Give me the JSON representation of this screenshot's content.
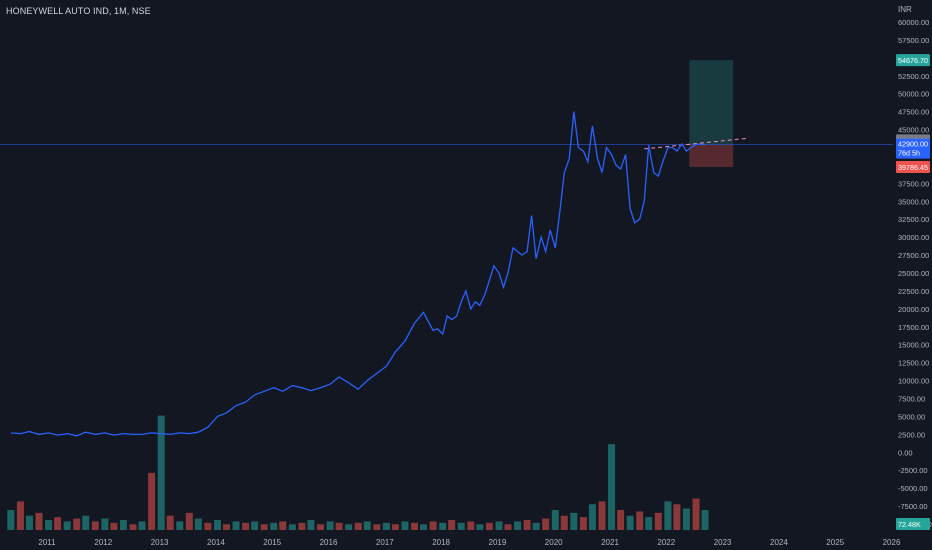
{
  "symbol_title": "HONEYWELL AUTO IND, 1M, NSE",
  "currency": "INR",
  "colors": {
    "background": "#131722",
    "line": "#2962ff",
    "up": "#26a69a",
    "down": "#ef5350",
    "text": "#b2b5be",
    "grid": "#1e222d"
  },
  "chart_data": {
    "type": "line",
    "x_tick_labels": [
      "2011",
      "2012",
      "2013",
      "2014",
      "2015",
      "2016",
      "2017",
      "2018",
      "2019",
      "2020",
      "2021",
      "2022",
      "2023",
      "2024",
      "2025",
      "2026"
    ],
    "y_tick_labels": [
      "60000.00",
      "57500.00",
      "55000.00",
      "52500.00",
      "50000.00",
      "47500.00",
      "45000.00",
      "42500.00",
      "40000.00",
      "37500.00",
      "35000.00",
      "32500.00",
      "30000.00",
      "27500.00",
      "25000.00",
      "22500.00",
      "20000.00",
      "17500.00",
      "15000.00",
      "12500.00",
      "10000.00",
      "7500.00",
      "5000.00",
      "2500.00",
      "0.00",
      "-2500.00",
      "-5000.00",
      "-7500.00",
      "-10000.00"
    ],
    "ylim": [
      -10000,
      60000
    ],
    "xlim": [
      2010.5,
      2026.5
    ],
    "series": [
      {
        "x": [
          2010.5,
          2010.67,
          2010.83,
          2011.0,
          2011.17,
          2011.33,
          2011.5,
          2011.67,
          2011.83,
          2012.0,
          2012.17,
          2012.33,
          2012.5,
          2012.67,
          2012.83,
          2013.0,
          2013.17,
          2013.33,
          2013.5,
          2013.67,
          2013.83,
          2014.0,
          2014.17,
          2014.33,
          2014.5,
          2014.67,
          2014.83,
          2015.0,
          2015.17,
          2015.33,
          2015.5,
          2015.67,
          2015.83,
          2016.0,
          2016.17,
          2016.33,
          2016.5,
          2016.67,
          2016.83,
          2017.0,
          2017.17,
          2017.33,
          2017.5,
          2017.67,
          2017.83,
          2018.0,
          2018.08,
          2018.17,
          2018.25,
          2018.33,
          2018.42,
          2018.5,
          2018.58,
          2018.67,
          2018.75,
          2018.83,
          2018.92,
          2019.0,
          2019.08,
          2019.17,
          2019.25,
          2019.33,
          2019.42,
          2019.5,
          2019.58,
          2019.67,
          2019.75,
          2019.83,
          2019.92,
          2020.0,
          2020.08,
          2020.17,
          2020.25,
          2020.33,
          2020.42,
          2020.5,
          2020.58,
          2020.67,
          2020.75,
          2020.83,
          2020.92,
          2021.0,
          2021.08,
          2021.17,
          2021.25,
          2021.33,
          2021.42,
          2021.5,
          2021.58,
          2021.67,
          2021.75,
          2021.83,
          2021.92,
          2022.0,
          2022.08,
          2022.17,
          2022.25,
          2022.33,
          2022.42,
          2022.5,
          2022.58,
          2022.67,
          2022.75,
          2022.83
        ],
        "values": [
          2700,
          2600,
          2900,
          2500,
          2700,
          2400,
          2600,
          2300,
          2800,
          2500,
          2700,
          2400,
          2600,
          2500,
          2500,
          2700,
          2600,
          2500,
          2700,
          2600,
          2800,
          3500,
          5000,
          5500,
          6500,
          7000,
          8000,
          8500,
          9000,
          8500,
          9300,
          9000,
          8600,
          9000,
          9500,
          10500,
          9700,
          8800,
          10000,
          11000,
          12000,
          14000,
          15500,
          18000,
          19500,
          17000,
          17200,
          16500,
          19000,
          18500,
          19000,
          21000,
          22500,
          20000,
          21000,
          20500,
          22000,
          24000,
          26000,
          25000,
          23000,
          25000,
          28500,
          28000,
          27500,
          28000,
          33000,
          27000,
          30000,
          28000,
          31000,
          28500,
          33500,
          39000,
          41000,
          47500,
          42500,
          42000,
          40500,
          45500,
          41000,
          39000,
          42500,
          41500,
          40000,
          39500,
          41500,
          34000,
          32000,
          32500,
          35000,
          42800,
          39000,
          38500,
          40500,
          42500,
          42500,
          42000,
          43000,
          42000,
          42500,
          42900,
          43000,
          42900
        ],
        "name": ""
      }
    ],
    "volume": {
      "x": [
        2010.5,
        2010.67,
        2010.83,
        2011.0,
        2011.17,
        2011.33,
        2011.5,
        2011.67,
        2011.83,
        2012.0,
        2012.17,
        2012.33,
        2012.5,
        2012.67,
        2012.83,
        2013.0,
        2013.17,
        2013.33,
        2013.5,
        2013.67,
        2013.83,
        2014.0,
        2014.17,
        2014.33,
        2014.5,
        2014.67,
        2014.83,
        2015.0,
        2015.17,
        2015.33,
        2015.5,
        2015.67,
        2015.83,
        2016.0,
        2016.17,
        2016.33,
        2016.5,
        2016.67,
        2016.83,
        2017.0,
        2017.17,
        2017.33,
        2017.5,
        2017.67,
        2017.83,
        2018.0,
        2018.17,
        2018.33,
        2018.5,
        2018.67,
        2018.83,
        2019.0,
        2019.17,
        2019.33,
        2019.5,
        2019.67,
        2019.83,
        2020.0,
        2020.17,
        2020.33,
        2020.5,
        2020.67,
        2020.83,
        2021.0,
        2021.17,
        2021.33,
        2021.5,
        2021.67,
        2021.83,
        2022.0,
        2022.17,
        2022.33,
        2022.5,
        2022.67,
        2022.83
      ],
      "values": [
        14,
        20,
        10,
        12,
        7,
        9,
        6,
        8,
        10,
        6,
        8,
        5,
        7,
        4,
        6,
        40,
        80,
        10,
        6,
        12,
        8,
        5,
        7,
        4,
        6,
        5,
        6,
        4,
        5,
        6,
        4,
        5,
        7,
        4,
        6,
        5,
        4,
        5,
        6,
        4,
        5,
        4,
        6,
        5,
        4,
        6,
        5,
        7,
        5,
        6,
        4,
        5,
        6,
        4,
        6,
        7,
        5,
        8,
        14,
        10,
        12,
        9,
        18,
        20,
        60,
        14,
        10,
        13,
        9,
        12,
        20,
        18,
        15,
        22,
        14
      ],
      "up": [
        true,
        false,
        true,
        false,
        true,
        false,
        true,
        false,
        true,
        false,
        true,
        false,
        true,
        false,
        true,
        false,
        true,
        false,
        true,
        false,
        true,
        false,
        true,
        false,
        true,
        false,
        true,
        false,
        true,
        false,
        true,
        false,
        true,
        false,
        true,
        false,
        true,
        false,
        true,
        false,
        true,
        false,
        true,
        false,
        true,
        false,
        true,
        false,
        true,
        false,
        true,
        false,
        true,
        false,
        true,
        false,
        true,
        false,
        true,
        false,
        true,
        false,
        true,
        false,
        true,
        false,
        true,
        false,
        true,
        false,
        true,
        false,
        true,
        false,
        true
      ]
    },
    "position": {
      "entry": 42900.0,
      "target": 54676.7,
      "stop": 39786.45,
      "x_start": 2022.55,
      "x_end": 2023.33
    },
    "trend_line": {
      "x_start": 2021.75,
      "y_start": 42300,
      "x_end": 2023.6,
      "y_end": 43800
    },
    "horizontal_line": 42900.0
  },
  "price_labels": {
    "target": "54676.70",
    "current": "43495.00",
    "entry": "42900.00",
    "countdown": "76d 5h",
    "stop": "39786.45",
    "volume": "72.48K"
  }
}
